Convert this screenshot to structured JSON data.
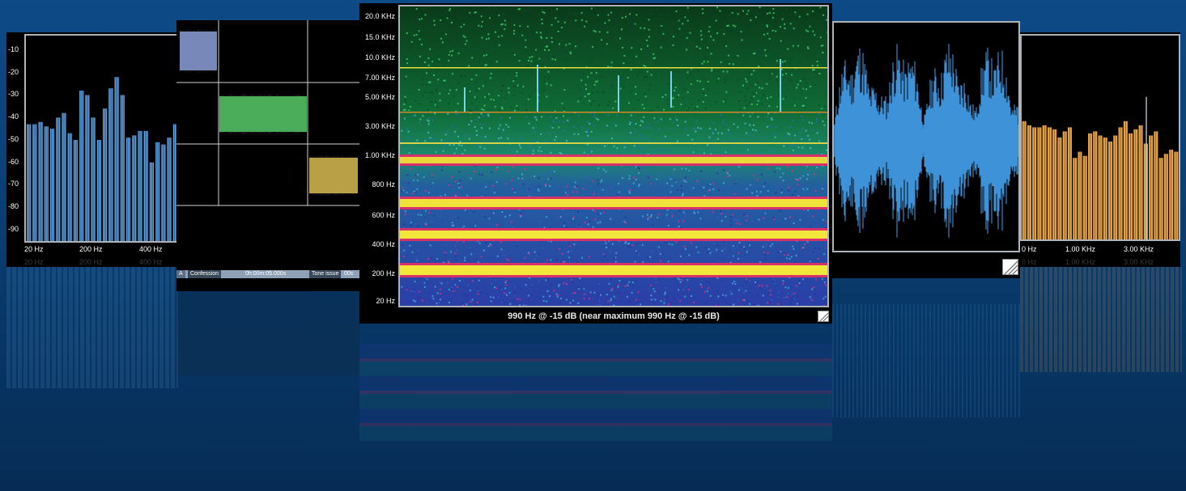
{
  "panels": {
    "spectrum_left": {
      "y_ticks": [
        "-10",
        "-20",
        "-30",
        "-40",
        "-50",
        "-60",
        "-70",
        "-80",
        "-90"
      ],
      "x_ticks": [
        "20 Hz",
        "200 Hz",
        "400 Hz"
      ],
      "bar_color": "#5b9fde",
      "levels_db": [
        -43,
        -43,
        -42,
        -44,
        -45,
        -40,
        -38,
        -47,
        -50,
        -28,
        -30,
        -40,
        -50,
        -36,
        -27,
        -22,
        -30,
        -49,
        -48,
        -46,
        -46,
        -60,
        -51,
        -52,
        -49,
        -43
      ]
    },
    "tracks": {
      "track1_label": "Confession",
      "track1_time": "0h:00m:05.000s",
      "track2_label": "Tone issue",
      "track2_time": "00s",
      "marker_letter": "A",
      "colors": [
        "#6b7db3",
        "#3aa44a",
        "#b39735"
      ]
    },
    "spectrogram": {
      "freq_labels": [
        "20.0 KHz",
        "15.0 KHz",
        "10.0 KHz",
        "7.00 KHz",
        "5.00 KHz",
        "3.00 KHz",
        "1.00 KHz",
        "800 Hz",
        "600 Hz",
        "400 Hz",
        "200 Hz",
        "20 Hz"
      ],
      "status": "990 Hz @ -15 dB (near maximum 990 Hz @ -15 dB)"
    },
    "waveform": {
      "color": "#3e92d8"
    },
    "spectrum_right": {
      "x_ticks": [
        "0 Hz",
        "1.00 KHz",
        "3.00 KHz"
      ],
      "bar_color": "#e2a046",
      "levels": [
        0.58,
        0.56,
        0.55,
        0.55,
        0.56,
        0.55,
        0.54,
        0.5,
        0.53,
        0.55,
        0.4,
        0.43,
        0.41,
        0.52,
        0.53,
        0.51,
        0.5,
        0.48,
        0.51,
        0.55,
        0.58,
        0.52,
        0.54,
        0.56,
        0.47,
        0.51,
        0.53,
        0.4,
        0.42,
        0.44,
        0.43
      ]
    }
  }
}
